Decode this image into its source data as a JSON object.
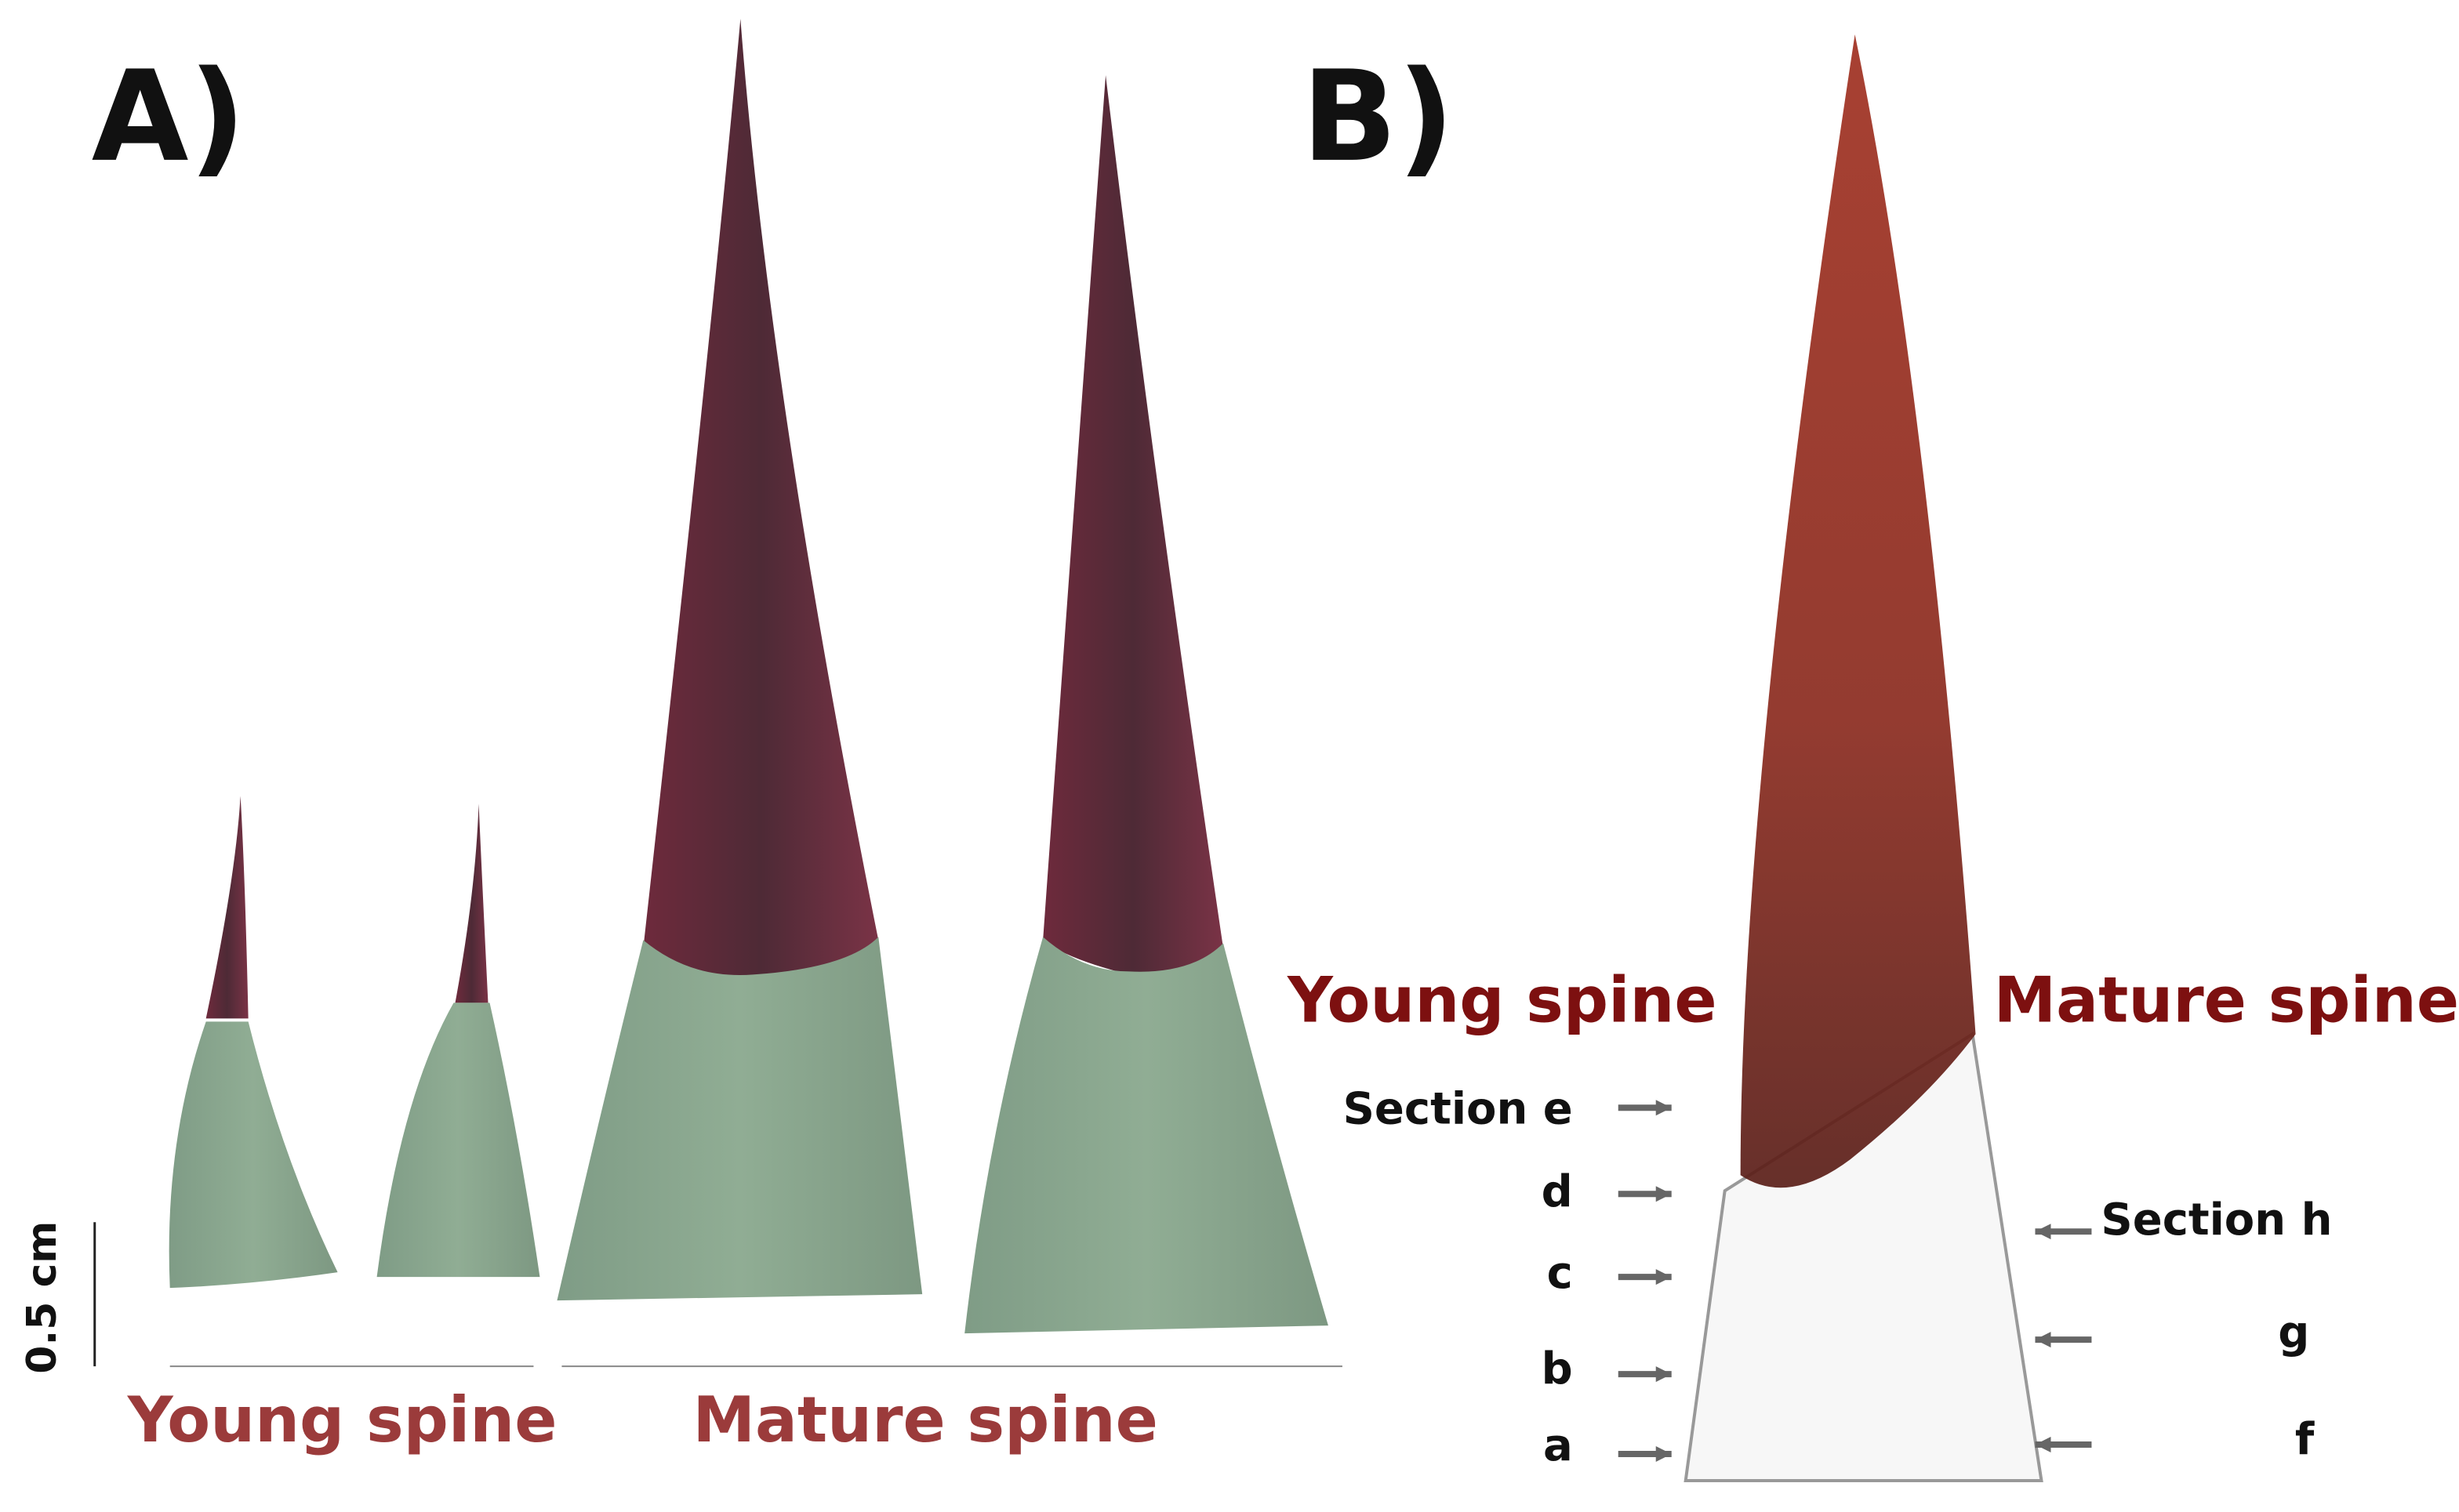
{
  "panel_a": {
    "label": "A)",
    "scale_bar": "0.5 cm",
    "groups": [
      {
        "label": "Young spine"
      },
      {
        "label": "Mature spine"
      }
    ]
  },
  "panel_b": {
    "label": "B)",
    "left_title": "Young spine",
    "right_title": "Mature spine",
    "left_sections": [
      "Section e",
      "d",
      "c",
      "b",
      "a"
    ],
    "right_sections": [
      "Section h",
      "g",
      "f"
    ]
  }
}
